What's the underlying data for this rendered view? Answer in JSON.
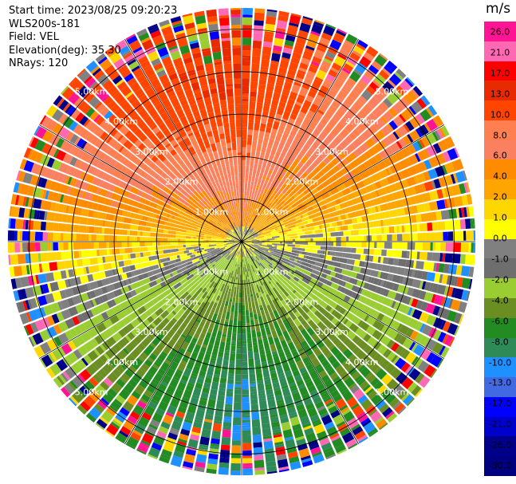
{
  "header": {
    "start_time": "Start time: 2023/08/25 09:20:23",
    "instrument": "WLS200s-181",
    "field": "Field: VEL",
    "elevation": "Elevation(deg): 35.30",
    "nrays": "NRays: 120"
  },
  "colorbar": {
    "unit": "m/s",
    "ticks": [
      "26.0",
      "21.0",
      "17.0",
      "13.0",
      "10.0",
      "8.0",
      "6.0",
      "4.0",
      "2.0",
      "1.0",
      "0.0",
      "-1.0",
      "-2.0",
      "-4.0",
      "-6.0",
      "-8.0",
      "-10.0",
      "-13.0",
      "-17.0",
      "-21.0",
      "-26.0",
      "-30.0"
    ],
    "colors": [
      "#ff1493",
      "#ff69b4",
      "#ff0000",
      "#e82a00",
      "#ff4500",
      "#ff7f50",
      "#fa8060",
      "#ff8c00",
      "#ffa500",
      "#ffd700",
      "#ffff00",
      "#808080",
      "#6e6e6e",
      "#9acd32",
      "#6b8e23",
      "#228b22",
      "#2e8b57",
      "#1e90ff",
      "#4169e1",
      "#0000ff",
      "#0000cd",
      "#00008b",
      "#000080"
    ],
    "tick_text_light": [
      "26.0",
      "21.0",
      "17.0",
      "13.0",
      "10.0",
      "8.0",
      "6.0",
      "4.0",
      "2.0",
      "1.0",
      "0.0",
      "-1.0",
      "-2.0",
      "-4.0",
      "-6.0",
      "-8.0",
      "-10.0",
      "-13.0",
      "-17.0",
      "-21.0",
      "-26.0",
      "-30.0"
    ]
  },
  "chart_data": {
    "type": "heatmap",
    "subtype": "radar-ppi",
    "field": "VEL",
    "units": "m/s",
    "n_rays": 120,
    "elevation_deg": 35.3,
    "range_rings_km": [
      1.0,
      2.0,
      3.0,
      4.0,
      5.0
    ],
    "ring_labels": [
      "1.00km",
      "2.00km",
      "3.00km",
      "4.00km",
      "5.00km"
    ],
    "max_range_km": 5.5,
    "color_levels_ms": [
      26.0,
      21.0,
      17.0,
      13.0,
      10.0,
      8.0,
      6.0,
      4.0,
      2.0,
      1.0,
      0.0,
      -1.0,
      -2.0,
      -4.0,
      -6.0,
      -8.0,
      -10.0,
      -13.0,
      -17.0,
      -21.0,
      -26.0,
      -30.0
    ],
    "velocity_pattern_by_compass_deg": [
      {
        "azimuth": 0,
        "value": 12
      },
      {
        "azimuth": 45,
        "value": 7
      },
      {
        "azimuth": 90,
        "value": 0.5
      },
      {
        "azimuth": 135,
        "value": -5
      },
      {
        "azimuth": 180,
        "value": -9
      },
      {
        "azimuth": 225,
        "value": -5
      },
      {
        "azimuth": 270,
        "value": 2
      },
      {
        "azimuth": 315,
        "value": 10
      }
    ]
  }
}
